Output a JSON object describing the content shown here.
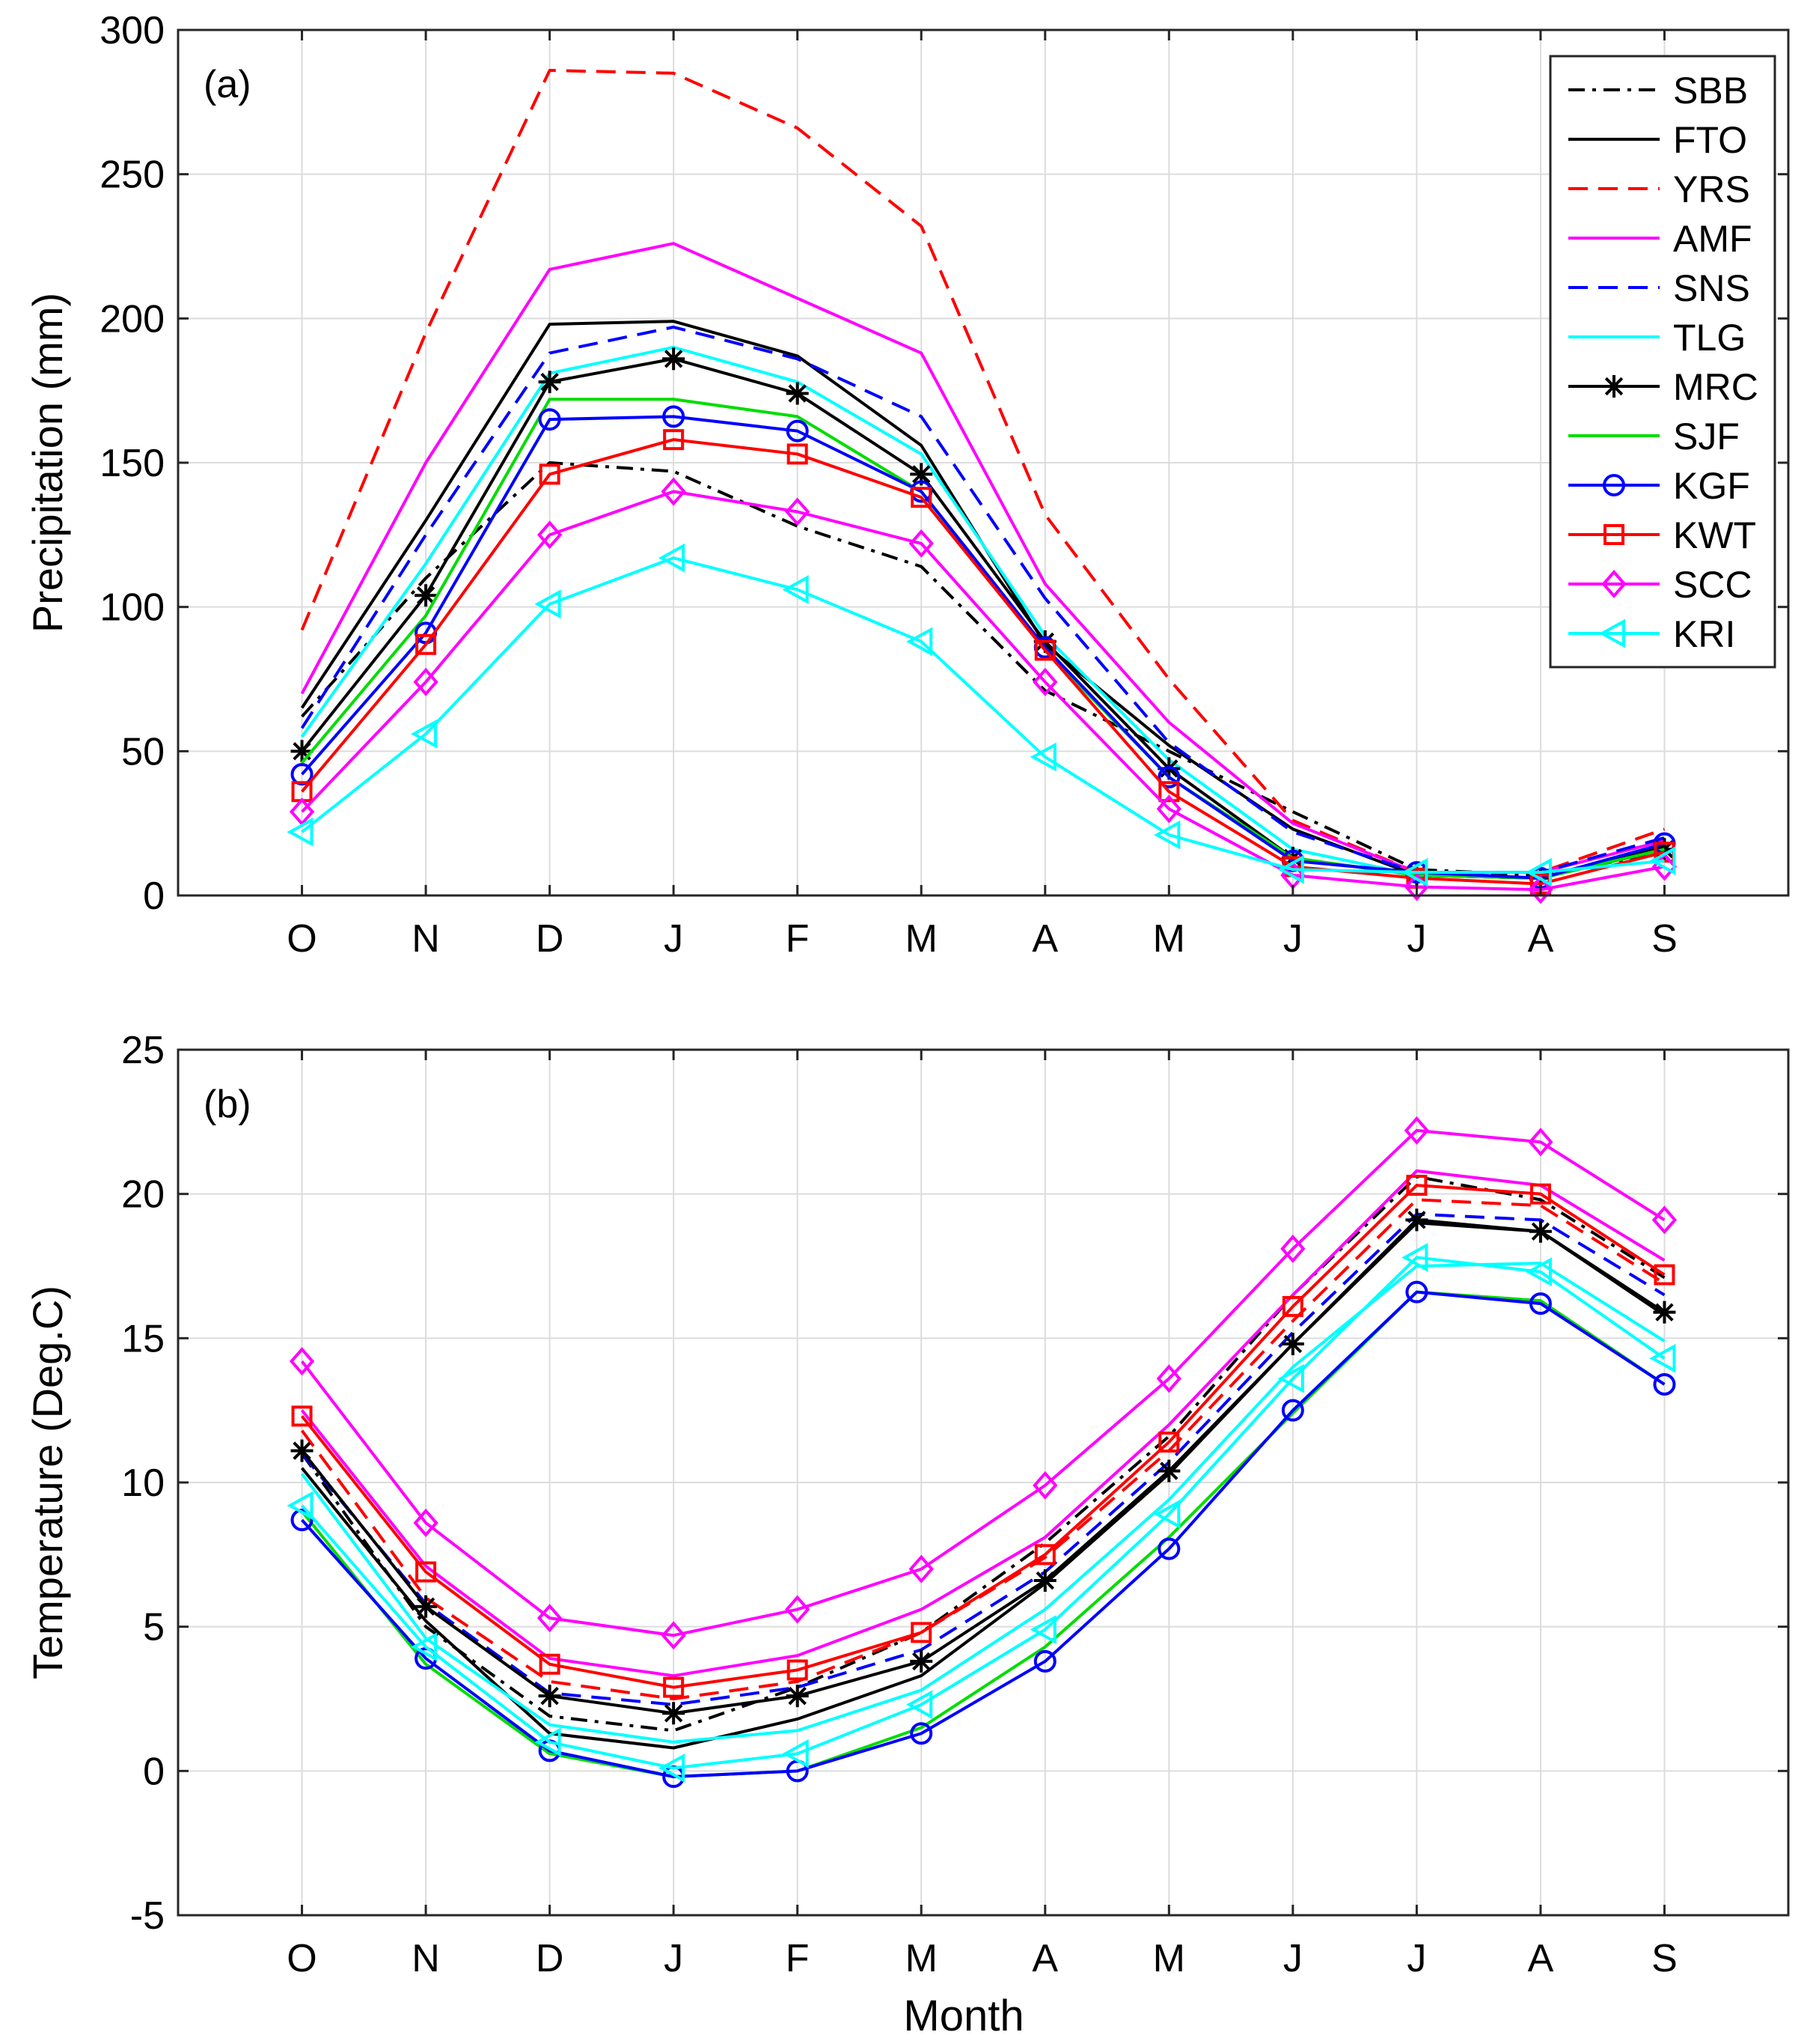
{
  "figure": {
    "xlabel": "Month"
  },
  "legend_entries": [
    {
      "name": "SBB",
      "color": "#000000",
      "dash": "dashdot",
      "marker": "none"
    },
    {
      "name": "FTO",
      "color": "#000000",
      "dash": "solid",
      "marker": "none"
    },
    {
      "name": "YRS",
      "color": "#ff0000",
      "dash": "dash",
      "marker": "none"
    },
    {
      "name": "AMF",
      "color": "#ff00ff",
      "dash": "solid",
      "marker": "none"
    },
    {
      "name": "SNS",
      "color": "#0000ff",
      "dash": "dash",
      "marker": "none"
    },
    {
      "name": "TLG",
      "color": "#00ffff",
      "dash": "solid",
      "marker": "none"
    },
    {
      "name": "MRC",
      "color": "#000000",
      "dash": "solid",
      "marker": "asterisk"
    },
    {
      "name": "SJF",
      "color": "#00dd00",
      "dash": "solid",
      "marker": "none"
    },
    {
      "name": "KGF",
      "color": "#0000ff",
      "dash": "solid",
      "marker": "circle"
    },
    {
      "name": "KWT",
      "color": "#ff0000",
      "dash": "solid",
      "marker": "square"
    },
    {
      "name": "SCC",
      "color": "#ff00ff",
      "dash": "solid",
      "marker": "diamond"
    },
    {
      "name": "KRI",
      "color": "#00ffff",
      "dash": "solid",
      "marker": "triangle-left"
    }
  ],
  "chart_data": [
    {
      "type": "line",
      "panel_label": "(a)",
      "title": "",
      "xlabel": "",
      "ylabel": "Precipitation (mm)",
      "categories": [
        "O",
        "N",
        "D",
        "J",
        "F",
        "M",
        "A",
        "M",
        "J",
        "J",
        "A",
        "S"
      ],
      "ylim": [
        0,
        300
      ],
      "yticks": [
        0,
        50,
        100,
        150,
        200,
        250,
        300
      ],
      "grid": true,
      "legend": "top-right",
      "series": [
        {
          "name": "SBB",
          "values": [
            62,
            110,
            150,
            147,
            128,
            114,
            71,
            50,
            29,
            9,
            7,
            15
          ]
        },
        {
          "name": "FTO",
          "values": [
            65,
            130,
            198,
            199,
            187,
            156,
            87,
            52,
            23,
            7,
            6,
            17
          ]
        },
        {
          "name": "YRS",
          "values": [
            92,
            195,
            286,
            285,
            266,
            232,
            132,
            75,
            26,
            8,
            8,
            23
          ]
        },
        {
          "name": "AMF",
          "values": [
            70,
            150,
            217,
            226,
            207,
            188,
            108,
            60,
            25,
            8,
            8,
            19
          ]
        },
        {
          "name": "SNS",
          "values": [
            58,
            125,
            188,
            197,
            186,
            166,
            103,
            53,
            22,
            8,
            8,
            20
          ]
        },
        {
          "name": "TLG",
          "values": [
            55,
            115,
            181,
            190,
            178,
            153,
            90,
            47,
            16,
            7,
            6,
            16
          ]
        },
        {
          "name": "MRC",
          "values": [
            50,
            104,
            178,
            186,
            174,
            146,
            88,
            44,
            13,
            7,
            6,
            16
          ]
        },
        {
          "name": "SJF",
          "values": [
            46,
            97,
            172,
            172,
            166,
            140,
            85,
            41,
            13,
            7,
            6,
            16
          ]
        },
        {
          "name": "KGF",
          "values": [
            42,
            91,
            165,
            166,
            161,
            140,
            86,
            41,
            12,
            8,
            6,
            18
          ]
        },
        {
          "name": "KWT",
          "values": [
            36,
            87,
            146,
            158,
            153,
            138,
            85,
            36,
            10,
            6,
            4,
            15
          ]
        },
        {
          "name": "SCC",
          "values": [
            29,
            74,
            125,
            140,
            133,
            122,
            74,
            30,
            7,
            3,
            2,
            10
          ]
        },
        {
          "name": "KRI",
          "values": [
            22,
            56,
            101,
            117,
            106,
            88,
            48,
            21,
            9,
            8,
            8,
            12
          ]
        }
      ]
    },
    {
      "type": "line",
      "panel_label": "(b)",
      "title": "",
      "xlabel": "Month",
      "ylabel": "Temperature (Deg.C)",
      "categories": [
        "O",
        "N",
        "D",
        "J",
        "F",
        "M",
        "A",
        "M",
        "J",
        "J",
        "A",
        "S"
      ],
      "ylim": [
        -5,
        25
      ],
      "yticks": [
        -5,
        0,
        5,
        10,
        15,
        20,
        25
      ],
      "grid": true,
      "legend": "none",
      "series": [
        {
          "name": "SBB",
          "values": [
            11.0,
            5.0,
            1.9,
            1.4,
            2.9,
            4.8,
            7.9,
            11.6,
            16.5,
            20.6,
            19.8,
            17.1
          ]
        },
        {
          "name": "FTO",
          "values": [
            10.5,
            5.2,
            1.3,
            0.8,
            1.8,
            3.3,
            6.5,
            10.3,
            14.8,
            19.0,
            18.7,
            15.8
          ]
        },
        {
          "name": "YRS",
          "values": [
            11.8,
            6.0,
            3.1,
            2.5,
            3.1,
            4.8,
            7.4,
            11.1,
            15.6,
            19.8,
            19.6,
            16.9
          ]
        },
        {
          "name": "AMF",
          "values": [
            12.5,
            7.1,
            3.9,
            3.3,
            4.0,
            5.6,
            8.1,
            12.0,
            16.5,
            20.8,
            20.3,
            17.7
          ]
        },
        {
          "name": "SNS",
          "values": [
            11.0,
            5.8,
            2.7,
            2.3,
            2.9,
            4.2,
            6.9,
            10.7,
            15.2,
            19.3,
            19.1,
            16.5
          ]
        },
        {
          "name": "TLG",
          "values": [
            10.3,
            4.6,
            1.6,
            1.0,
            1.4,
            2.8,
            5.6,
            9.4,
            14.0,
            17.5,
            17.6,
            14.9
          ]
        },
        {
          "name": "MRC",
          "values": [
            11.1,
            5.7,
            2.6,
            2.0,
            2.6,
            3.8,
            6.6,
            10.4,
            14.8,
            19.1,
            18.7,
            15.9
          ]
        },
        {
          "name": "SJF",
          "values": [
            9.0,
            3.7,
            0.6,
            -0.2,
            0.0,
            1.5,
            4.3,
            8.1,
            12.4,
            16.6,
            16.3,
            13.4
          ]
        },
        {
          "name": "KGF",
          "values": [
            8.7,
            3.9,
            0.7,
            -0.2,
            0.0,
            1.3,
            3.8,
            7.7,
            12.5,
            16.6,
            16.2,
            13.4
          ]
        },
        {
          "name": "KWT",
          "values": [
            12.3,
            6.9,
            3.7,
            2.9,
            3.5,
            4.8,
            7.5,
            11.4,
            16.1,
            20.3,
            20.0,
            17.2
          ]
        },
        {
          "name": "SCC",
          "values": [
            14.2,
            8.6,
            5.3,
            4.7,
            5.6,
            7.0,
            9.9,
            13.6,
            18.1,
            22.2,
            21.8,
            19.1
          ]
        },
        {
          "name": "KRI",
          "values": [
            9.2,
            4.3,
            1.0,
            0.1,
            0.6,
            2.3,
            4.9,
            8.9,
            13.6,
            17.8,
            17.3,
            14.3
          ]
        }
      ]
    }
  ]
}
